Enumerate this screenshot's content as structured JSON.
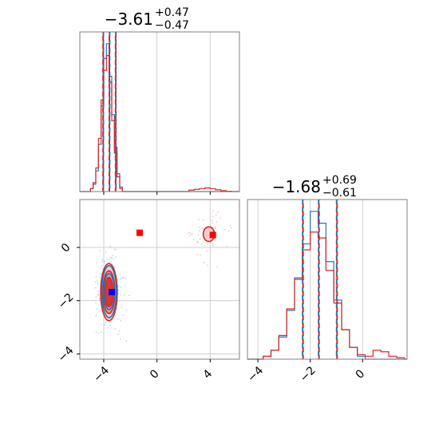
{
  "colors": {
    "blue": "#1f77b4",
    "red": "#d62728",
    "red_fill": "#e8888a",
    "red_light": "#f3c3c4",
    "marker_blue": "#0000ff",
    "marker_red": "#ff0000",
    "grid": "#cfcfcf",
    "frame": "#808080"
  },
  "chart_data": [
    {
      "type": "histogram",
      "panel": "top-left",
      "title": {
        "main": "−3.61",
        "sup": "+0.47",
        "sub": "−0.47"
      },
      "xlim": [
        -5.8,
        6.2
      ],
      "grid": true,
      "x_ticks": [
        -4,
        0,
        4
      ],
      "vlines_red": [
        -4.08,
        -3.61,
        -3.14
      ],
      "vlines_blue": [
        -4.03,
        -3.56,
        -3.09
      ],
      "series": [
        {
          "color": "blue",
          "bins": [
            -5.0,
            -4.8,
            -4.6,
            -4.4,
            -4.2,
            -4.0,
            -3.8,
            -3.6,
            -3.4,
            -3.2,
            -3.0,
            -2.8,
            -2.6
          ],
          "counts": [
            0.02,
            0.05,
            0.14,
            0.32,
            0.58,
            0.9,
            1.0,
            0.78,
            0.52,
            0.3,
            0.12,
            0.03
          ]
        },
        {
          "color": "red",
          "bins": [
            -5.0,
            -4.8,
            -4.6,
            -4.4,
            -4.2,
            -4.0,
            -3.8,
            -3.6,
            -3.4,
            -3.2,
            -3.0,
            -2.8,
            -2.6,
            2.4,
            2.8,
            3.2,
            3.6,
            4.0,
            4.4,
            4.8,
            5.2,
            5.6,
            6.0
          ],
          "counts": [
            0.02,
            0.06,
            0.16,
            0.36,
            0.62,
            0.82,
            0.92,
            0.74,
            0.48,
            0.26,
            0.1,
            0.02,
            0.0,
            0.01,
            0.015,
            0.02,
            0.025,
            0.02,
            0.012,
            0.006,
            0.002,
            0.0
          ]
        }
      ]
    },
    {
      "type": "histogram",
      "panel": "bottom-right",
      "title": {
        "main": "−1.68",
        "sup": "+0.69",
        "sub": "−0.61"
      },
      "xlim": [
        -4.4,
        1.7
      ],
      "grid": true,
      "x_ticks": [
        -4,
        -2,
        0
      ],
      "x_tick_labels": [
        "−4",
        "−2",
        "0"
      ],
      "vlines_red": [
        -2.29,
        -1.68,
        -0.99
      ],
      "vlines_blue": [
        -2.29,
        -1.68,
        -0.99
      ],
      "series": [
        {
          "color": "blue",
          "bins": [
            -3.8,
            -3.5,
            -3.2,
            -2.9,
            -2.6,
            -2.3,
            -2.0,
            -1.7,
            -1.4,
            -1.1,
            -0.8,
            -0.5,
            -0.2,
            0.1
          ],
          "counts": [
            0.02,
            0.06,
            0.15,
            0.33,
            0.55,
            0.78,
            1.0,
            0.92,
            0.66,
            0.4,
            0.2,
            0.08,
            0.02
          ]
        },
        {
          "color": "red",
          "bins": [
            -3.8,
            -3.5,
            -3.2,
            -2.9,
            -2.6,
            -2.3,
            -2.0,
            -1.7,
            -1.4,
            -1.1,
            -0.8,
            -0.5,
            -0.2,
            0.1,
            0.4,
            0.7,
            1.0,
            1.3,
            1.6
          ],
          "counts": [
            0.02,
            0.06,
            0.16,
            0.34,
            0.54,
            0.74,
            0.86,
            0.82,
            0.6,
            0.38,
            0.2,
            0.08,
            0.03,
            0.02,
            0.06,
            0.05,
            0.02,
            0.01
          ]
        }
      ]
    },
    {
      "type": "scatter",
      "panel": "bottom-left",
      "xlim": [
        -5.8,
        6.2
      ],
      "ylim": [
        -4.2,
        1.8
      ],
      "grid": true,
      "x_ticks": [
        -4,
        0,
        4
      ],
      "x_tick_labels": [
        "−4",
        "0",
        "4"
      ],
      "y_ticks": [
        0,
        -2,
        -4
      ],
      "y_tick_labels": [
        "0",
        "−2",
        "−4"
      ],
      "contours_red": [
        {
          "cx": -3.61,
          "cy": -1.68,
          "rx": 1.25,
          "ry": 2.15,
          "fill": "red_light"
        },
        {
          "cx": -3.61,
          "cy": -1.68,
          "rx": 0.9,
          "ry": 1.6,
          "fill": "red_fill"
        },
        {
          "cx": -3.61,
          "cy": -1.68,
          "rx": 0.6,
          "ry": 1.1,
          "fill": "red"
        },
        {
          "cx": 3.9,
          "cy": 0.5,
          "rx": 0.85,
          "ry": 0.55,
          "fill": "red_light"
        }
      ],
      "contours_blue": [
        {
          "cx": -3.6,
          "cy": -1.66,
          "rx": 1.1,
          "ry": 1.95
        },
        {
          "cx": -3.6,
          "cy": -1.66,
          "rx": 0.78,
          "ry": 1.35
        }
      ],
      "markers": [
        {
          "x": -1.3,
          "y": 0.55,
          "color": "marker_red"
        },
        {
          "x": 4.2,
          "y": 0.47,
          "color": "marker_red"
        },
        {
          "x": -3.4,
          "y": -1.68,
          "color": "marker_blue"
        }
      ]
    }
  ]
}
